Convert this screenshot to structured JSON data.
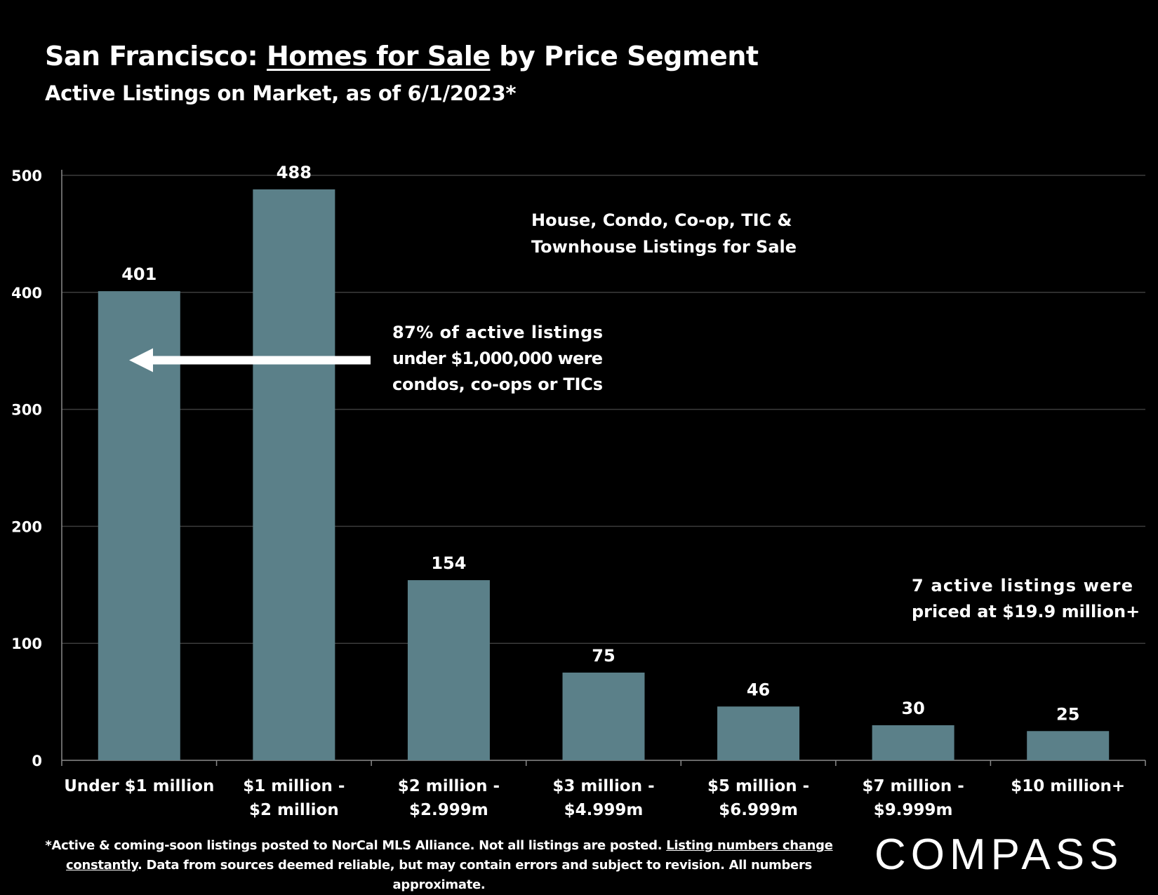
{
  "header": {
    "title_prefix": "San Francisco: ",
    "title_emphasis": "Homes for Sale",
    "title_suffix": " by Price Segment",
    "subtitle": "Active Listings on Market, as of 6/1/2023*"
  },
  "chart_data": {
    "type": "bar",
    "title": "San Francisco: Homes for Sale by Price Segment",
    "subtitle": "Active Listings on Market, as of 6/1/2023*",
    "categories": [
      [
        "Under $1 million"
      ],
      [
        "$1 million -",
        "$2 million"
      ],
      [
        "$2 million -",
        "$2.999m"
      ],
      [
        "$3 million -",
        "$4.999m"
      ],
      [
        "$5 million -",
        "$6.999m"
      ],
      [
        "$7 million -",
        "$9.999m"
      ],
      [
        "$10 million+"
      ]
    ],
    "values": [
      401,
      488,
      154,
      75,
      46,
      30,
      25
    ],
    "data_labels": [
      "401",
      "488",
      "154",
      "75",
      "46",
      "30",
      "25"
    ],
    "ylim": [
      0,
      500
    ],
    "yticks": [
      0,
      100,
      200,
      300,
      400,
      500
    ],
    "ytick_labels": [
      "0",
      "100",
      "200",
      "300",
      "400",
      "500"
    ],
    "grid": true,
    "bar_color": "#5b8089",
    "xlabel": "",
    "ylabel": "",
    "annotations": {
      "legend_note": [
        "House, Condo, Co-op, TIC &",
        "Townhouse Listings for Sale"
      ],
      "condo_note": [
        "87% of active listings",
        "under $1,000,000 were",
        "condos, co-ops or TICs"
      ],
      "luxury_note": [
        "7 active listings were",
        "priced at $19.9 million+"
      ],
      "arrow_target_value": 342
    }
  },
  "footer": {
    "line1_text": "*Active & coming-soon listings posted to NorCal MLS Alliance. Not all listings are posted. ",
    "line1_link": "Listing numbers change",
    "line2_link": "constantly",
    "line2_text": ". Data from sources deemed reliable, but may contain errors and subject to revision. All numbers approximate."
  },
  "brand": {
    "name": "COMPASS"
  },
  "colors": {
    "background": "#000000",
    "text": "#ffffff",
    "bar": "#5b8089",
    "grid": "#3c3c3c"
  }
}
